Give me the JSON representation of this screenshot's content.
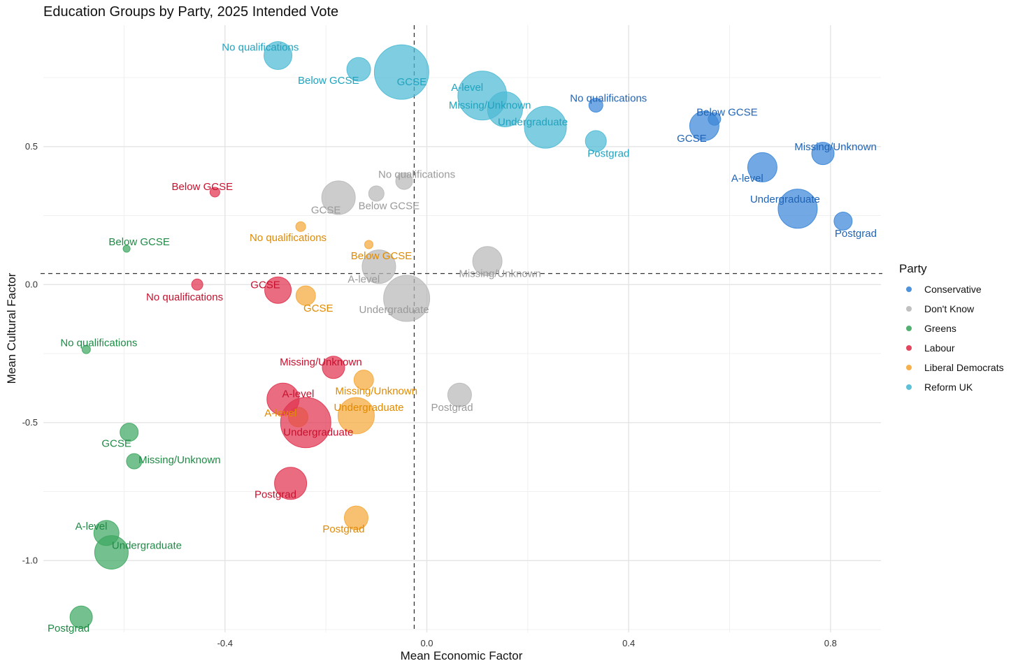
{
  "chart_data": {
    "type": "scatter",
    "title": "Education Groups by Party, 2025 Intended Vote",
    "xlabel": "Mean Economic Factor",
    "ylabel": "Mean Cultural Factor",
    "xlim": [
      -0.76,
      0.9
    ],
    "ylim": [
      -1.26,
      0.94
    ],
    "x_ticks": [
      -0.4,
      0.0,
      0.4,
      0.8
    ],
    "y_ticks": [
      -1.0,
      -0.5,
      0.0,
      0.5
    ],
    "grid": true,
    "reference_lines": {
      "x": -0.025,
      "y": 0.04,
      "style": "dashed"
    },
    "legend": {
      "title": "Party",
      "placement": "right",
      "entries": [
        "Conservative",
        "Don't Know",
        "Greens",
        "Labour",
        "Liberal Democrats",
        "Reform UK"
      ]
    },
    "colors": {
      "Conservative": "#3b86d8",
      "Don't Know": "#b9b9b9",
      "Greens": "#3fa862",
      "Labour": "#e0334f",
      "Liberal Democrats": "#f5a83a",
      "Reform UK": "#4dbad4"
    },
    "label_colors": {
      "Conservative": "#1f63b6",
      "Don't Know": "#9a9a9a",
      "Greens": "#1f8a45",
      "Labour": "#c8102e",
      "Liberal Democrats": "#e08a00",
      "Reform UK": "#1fa3bf"
    },
    "series": [
      {
        "name": "Reform UK",
        "points": [
          {
            "label": "No qualifications",
            "x": -0.295,
            "y": 0.83,
            "size": 20,
            "lx": -0.33,
            "ly": 0.86
          },
          {
            "label": "Below GCSE",
            "x": -0.135,
            "y": 0.78,
            "size": 17,
            "lx": -0.195,
            "ly": 0.74
          },
          {
            "label": "GCSE",
            "x": -0.05,
            "y": 0.77,
            "size": 39,
            "lx": -0.03,
            "ly": 0.735
          },
          {
            "label": "A-level",
            "x": 0.11,
            "y": 0.685,
            "size": 35,
            "lx": 0.08,
            "ly": 0.715
          },
          {
            "label": "Missing/Unknown",
            "x": 0.155,
            "y": 0.635,
            "size": 25,
            "lx": 0.125,
            "ly": 0.65
          },
          {
            "label": "Undergraduate",
            "x": 0.235,
            "y": 0.57,
            "size": 30,
            "lx": 0.21,
            "ly": 0.59
          },
          {
            "label": "Postgrad",
            "x": 0.335,
            "y": 0.52,
            "size": 15,
            "lx": 0.36,
            "ly": 0.475
          }
        ]
      },
      {
        "name": "Conservative",
        "points": [
          {
            "label": "No qualifications",
            "x": 0.335,
            "y": 0.65,
            "size": 10,
            "lx": 0.36,
            "ly": 0.675
          },
          {
            "label": "Below GCSE",
            "x": 0.57,
            "y": 0.6,
            "size": 9,
            "lx": 0.595,
            "ly": 0.625
          },
          {
            "label": "GCSE",
            "x": 0.55,
            "y": 0.575,
            "size": 21,
            "lx": 0.525,
            "ly": 0.53
          },
          {
            "label": "A-level",
            "x": 0.665,
            "y": 0.425,
            "size": 21,
            "lx": 0.635,
            "ly": 0.385
          },
          {
            "label": "Missing/Unknown",
            "x": 0.785,
            "y": 0.475,
            "size": 16,
            "lx": 0.81,
            "ly": 0.5
          },
          {
            "label": "Undergraduate",
            "x": 0.735,
            "y": 0.275,
            "size": 28,
            "lx": 0.71,
            "ly": 0.31
          },
          {
            "label": "Postgrad",
            "x": 0.825,
            "y": 0.23,
            "size": 13,
            "lx": 0.85,
            "ly": 0.185
          }
        ]
      },
      {
        "name": "Don't Know",
        "points": [
          {
            "label": "No qualifications",
            "x": -0.045,
            "y": 0.375,
            "size": 12,
            "lx": -0.02,
            "ly": 0.4
          },
          {
            "label": "Below GCSE",
            "x": -0.1,
            "y": 0.33,
            "size": 11,
            "lx": -0.075,
            "ly": 0.285
          },
          {
            "label": "GCSE",
            "x": -0.175,
            "y": 0.315,
            "size": 24,
            "lx": -0.2,
            "ly": 0.27
          },
          {
            "label": "Missing/Unknown",
            "x": 0.12,
            "y": 0.085,
            "size": 21,
            "lx": 0.145,
            "ly": 0.04
          },
          {
            "label": "A-level",
            "x": -0.095,
            "y": 0.065,
            "size": 24,
            "lx": -0.125,
            "ly": 0.02
          },
          {
            "label": "Undergraduate",
            "x": -0.04,
            "y": -0.05,
            "size": 33,
            "lx": -0.065,
            "ly": -0.09
          },
          {
            "label": "Postgrad",
            "x": 0.065,
            "y": -0.4,
            "size": 17,
            "lx": 0.05,
            "ly": -0.445
          }
        ]
      },
      {
        "name": "Liberal Democrats",
        "points": [
          {
            "label": "No qualifications",
            "x": -0.25,
            "y": 0.21,
            "size": 7,
            "lx": -0.275,
            "ly": 0.17
          },
          {
            "label": "Below GCSE",
            "x": -0.115,
            "y": 0.145,
            "size": 6,
            "lx": -0.09,
            "ly": 0.105
          },
          {
            "label": "GCSE",
            "x": -0.24,
            "y": -0.04,
            "size": 14,
            "lx": -0.215,
            "ly": -0.085
          },
          {
            "label": "Missing/Unknown",
            "x": -0.125,
            "y": -0.345,
            "size": 14,
            "lx": -0.1,
            "ly": -0.385
          },
          {
            "label": "A-level",
            "x": -0.255,
            "y": -0.48,
            "size": 14,
            "lx": -0.29,
            "ly": -0.465
          },
          {
            "label": "Undergraduate",
            "x": -0.14,
            "y": -0.475,
            "size": 26,
            "lx": -0.115,
            "ly": -0.445
          },
          {
            "label": "Postgrad",
            "x": -0.14,
            "y": -0.845,
            "size": 17,
            "lx": -0.165,
            "ly": -0.885
          }
        ]
      },
      {
        "name": "Labour",
        "points": [
          {
            "label": "Below GCSE",
            "x": -0.42,
            "y": 0.335,
            "size": 7,
            "lx": -0.445,
            "ly": 0.355
          },
          {
            "label": "No qualifications",
            "x": -0.455,
            "y": 0.0,
            "size": 8,
            "lx": -0.48,
            "ly": -0.045
          },
          {
            "label": "GCSE",
            "x": -0.295,
            "y": -0.02,
            "size": 19,
            "lx": -0.32,
            "ly": 0.0
          },
          {
            "label": "Missing/Unknown",
            "x": -0.185,
            "y": -0.3,
            "size": 16,
            "lx": -0.21,
            "ly": -0.28
          },
          {
            "label": "A-level",
            "x": -0.285,
            "y": -0.415,
            "size": 23,
            "lx": -0.255,
            "ly": -0.395
          },
          {
            "label": "Undergraduate",
            "x": -0.24,
            "y": -0.5,
            "size": 36,
            "lx": -0.215,
            "ly": -0.535
          },
          {
            "label": "Postgrad",
            "x": -0.27,
            "y": -0.72,
            "size": 23,
            "lx": -0.3,
            "ly": -0.76
          }
        ]
      },
      {
        "name": "Greens",
        "points": [
          {
            "label": "Below GCSE",
            "x": -0.595,
            "y": 0.13,
            "size": 5,
            "lx": -0.57,
            "ly": 0.155
          },
          {
            "label": "No qualifications",
            "x": -0.675,
            "y": -0.235,
            "size": 6,
            "lx": -0.65,
            "ly": -0.21
          },
          {
            "label": "GCSE",
            "x": -0.59,
            "y": -0.535,
            "size": 13,
            "lx": -0.615,
            "ly": -0.575
          },
          {
            "label": "Missing/Unknown",
            "x": -0.58,
            "y": -0.64,
            "size": 11,
            "lx": -0.49,
            "ly": -0.635
          },
          {
            "label": "A-level",
            "x": -0.635,
            "y": -0.9,
            "size": 18,
            "lx": -0.665,
            "ly": -0.875
          },
          {
            "label": "Undergraduate",
            "x": -0.625,
            "y": -0.97,
            "size": 24,
            "lx": -0.555,
            "ly": -0.945
          },
          {
            "label": "Postgrad",
            "x": -0.685,
            "y": -1.205,
            "size": 16,
            "lx": -0.71,
            "ly": -1.245
          }
        ]
      }
    ]
  }
}
